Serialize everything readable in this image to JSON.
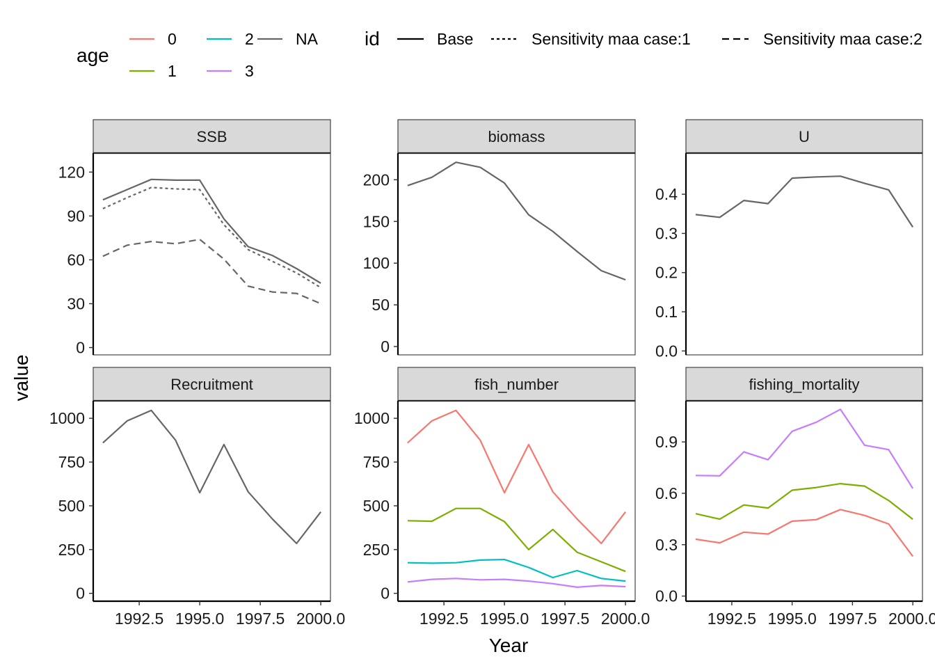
{
  "chart_data": {
    "type": "line",
    "xlabel": "Year",
    "ylabel": "value",
    "legend": {
      "placement": "top",
      "age": {
        "title": "age",
        "entries": [
          {
            "label": "0",
            "color": "#F8766D"
          },
          {
            "label": "2",
            "color": "#00BFC4"
          },
          {
            "label": "NA",
            "color": "#666666"
          },
          {
            "label": "1",
            "color": "#7CAE00"
          },
          {
            "label": "3",
            "color": "#C77CFF"
          }
        ]
      },
      "id": {
        "title": "id",
        "entries": [
          {
            "label": "Base",
            "linetype": "solid"
          },
          {
            "label": "Sensitivity maa case:1",
            "linetype": "dotted"
          },
          {
            "label": "Sensitivity maa case:2",
            "linetype": "dashed"
          }
        ]
      }
    },
    "x_ticks": [
      1992.5,
      1995.0,
      1997.5,
      2000.0
    ],
    "x_tick_labels": [
      "1992.5",
      "1995.0",
      "1997.5",
      "2000.0"
    ],
    "xlim": [
      1990.6,
      2000.4
    ],
    "panels": [
      {
        "strip": "SSB",
        "ylim": [
          -5,
          133
        ],
        "y_ticks": [
          0,
          30,
          60,
          90,
          120
        ],
        "y_tick_labels": [
          "0",
          "30",
          "60",
          "90",
          "120"
        ],
        "series": [
          {
            "age": "NA",
            "id": "Base",
            "linetype": "solid",
            "color": "#666666",
            "x": [
              1991,
              1992,
              1993,
              1994,
              1995,
              1996,
              1997,
              1998,
              1999,
              2000
            ],
            "y": [
              101,
              108,
              115,
              114.5,
              114.5,
              88,
              69,
              63,
              54,
              44
            ]
          },
          {
            "age": "NA",
            "id": "Sensitivity maa case:1",
            "linetype": "dotted",
            "color": "#666666",
            "x": [
              1991,
              1992,
              1993,
              1994,
              1995,
              1996,
              1997,
              1998,
              1999,
              2000
            ],
            "y": [
              95,
              102.5,
              109.5,
              108.5,
              108,
              84,
              67,
              59,
              51,
              41
            ]
          },
          {
            "age": "NA",
            "id": "Sensitivity maa case:2",
            "linetype": "dashed",
            "color": "#666666",
            "x": [
              1991,
              1992,
              1993,
              1994,
              1995,
              1996,
              1997,
              1998,
              1999,
              2000
            ],
            "y": [
              62.5,
              70,
              72.5,
              71,
              74,
              60.5,
              42,
              38,
              37,
              30
            ]
          }
        ]
      },
      {
        "strip": "biomass",
        "ylim": [
          -10,
          232
        ],
        "y_ticks": [
          0,
          50,
          100,
          150,
          200
        ],
        "y_tick_labels": [
          "0",
          "50",
          "100",
          "150",
          "200"
        ],
        "series": [
          {
            "age": "NA",
            "id": "Base",
            "linetype": "solid",
            "color": "#666666",
            "x": [
              1991,
              1992,
              1993,
              1994,
              1995,
              1996,
              1997,
              1998,
              1999,
              2000
            ],
            "y": [
              193,
              203,
              221,
              215,
              196,
              158,
              138,
              114,
              91,
              80
            ]
          }
        ]
      },
      {
        "strip": "U",
        "ylim": [
          -0.01,
          0.505
        ],
        "y_ticks": [
          0.0,
          0.1,
          0.2,
          0.3,
          0.4
        ],
        "y_tick_labels": [
          "0.0",
          "0.1",
          "0.2",
          "0.3",
          "0.4"
        ],
        "series": [
          {
            "age": "NA",
            "id": "Base",
            "linetype": "solid",
            "color": "#666666",
            "x": [
              1991,
              1992,
              1993,
              1994,
              1995,
              1996,
              1997,
              1998,
              1999,
              2000
            ],
            "y": [
              0.348,
              0.341,
              0.384,
              0.376,
              0.441,
              0.444,
              0.446,
              0.428,
              0.411,
              0.316
            ]
          }
        ]
      },
      {
        "strip": "Recruitment",
        "ylim": [
          -45,
          1100
        ],
        "y_ticks": [
          0,
          250,
          500,
          750,
          1000
        ],
        "y_tick_labels": [
          "0",
          "250",
          "500",
          "750",
          "1000"
        ],
        "series": [
          {
            "age": "NA",
            "id": "Base",
            "linetype": "solid",
            "color": "#666666",
            "x": [
              1991,
              1992,
              1993,
              1994,
              1995,
              1996,
              1997,
              1998,
              1999,
              2000
            ],
            "y": [
              860,
              985,
              1045,
              875,
              575,
              850,
              580,
              425,
              285,
              465
            ]
          }
        ]
      },
      {
        "strip": "fish_number",
        "ylim": [
          -45,
          1100
        ],
        "y_ticks": [
          0,
          250,
          500,
          750,
          1000
        ],
        "y_tick_labels": [
          "0",
          "250",
          "500",
          "750",
          "1000"
        ],
        "series": [
          {
            "age": "0",
            "id": "Base",
            "linetype": "solid",
            "color": "#F8766D",
            "x": [
              1991,
              1992,
              1993,
              1994,
              1995,
              1996,
              1997,
              1998,
              1999,
              2000
            ],
            "y": [
              860,
              985,
              1045,
              875,
              575,
              850,
              580,
              425,
              285,
              465
            ]
          },
          {
            "age": "1",
            "id": "Base",
            "linetype": "solid",
            "color": "#7CAE00",
            "x": [
              1991,
              1992,
              1993,
              1994,
              1995,
              1996,
              1997,
              1998,
              1999,
              2000
            ],
            "y": [
              415,
              412,
              485,
              485,
              410,
              250,
              365,
              235,
              180,
              125
            ]
          },
          {
            "age": "2",
            "id": "Base",
            "linetype": "solid",
            "color": "#00BFC4",
            "x": [
              1991,
              1992,
              1993,
              1994,
              1995,
              1996,
              1997,
              1998,
              1999,
              2000
            ],
            "y": [
              175,
              172,
              175,
              190,
              193,
              148,
              90,
              130,
              85,
              70
            ]
          },
          {
            "age": "3",
            "id": "Base",
            "linetype": "solid",
            "color": "#C77CFF",
            "x": [
              1991,
              1992,
              1993,
              1994,
              1995,
              1996,
              1997,
              1998,
              1999,
              2000
            ],
            "y": [
              65,
              80,
              85,
              77,
              80,
              70,
              55,
              35,
              45,
              38
            ]
          }
        ]
      },
      {
        "strip": "fishing_mortality",
        "ylim": [
          -0.03,
          1.14
        ],
        "y_ticks": [
          0.0,
          0.3,
          0.6,
          0.9
        ],
        "y_tick_labels": [
          "0.0",
          "0.3",
          "0.6",
          "0.9"
        ],
        "series": [
          {
            "age": "0",
            "id": "Base",
            "linetype": "solid",
            "color": "#F8766D",
            "x": [
              1991,
              1992,
              1993,
              1994,
              1995,
              1996,
              1997,
              1998,
              1999,
              2000
            ],
            "y": [
              0.332,
              0.311,
              0.373,
              0.362,
              0.437,
              0.446,
              0.505,
              0.471,
              0.421,
              0.232
            ]
          },
          {
            "age": "1",
            "id": "Base",
            "linetype": "solid",
            "color": "#7CAE00",
            "x": [
              1991,
              1992,
              1993,
              1994,
              1995,
              1996,
              1997,
              1998,
              1999,
              2000
            ],
            "y": [
              0.481,
              0.449,
              0.532,
              0.514,
              0.618,
              0.634,
              0.656,
              0.642,
              0.558,
              0.448
            ]
          },
          {
            "age": "3",
            "id": "Base",
            "linetype": "solid",
            "color": "#C77CFF",
            "x": [
              1991,
              1992,
              1993,
              1994,
              1995,
              1996,
              1997,
              1998,
              1999,
              2000
            ],
            "y": [
              0.704,
              0.702,
              0.842,
              0.796,
              0.962,
              1.015,
              1.09,
              0.881,
              0.855,
              0.628
            ]
          }
        ]
      }
    ]
  }
}
